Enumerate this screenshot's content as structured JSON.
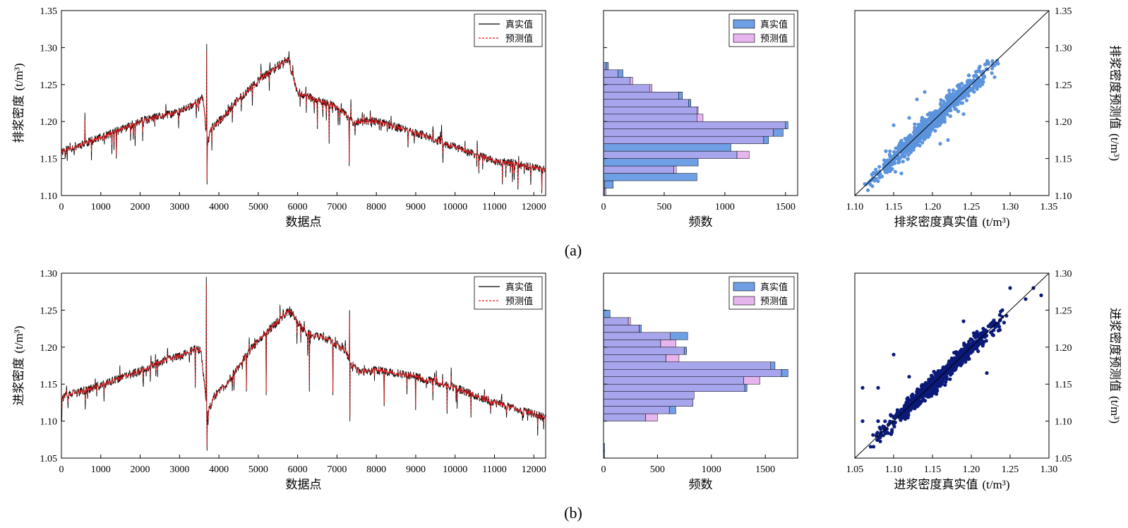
{
  "captions": {
    "a": "(a)",
    "b": "(b)"
  },
  "colors": {
    "true_line": "#000000",
    "pred_line": "#e41a1c",
    "hist_true": "#6fa0e6",
    "hist_pred": "#e6b5ee",
    "hist_overlap": "#a7a5ec",
    "scatter_a": "#5b93dc",
    "scatter_b": "#0b1a78"
  },
  "chart_data": [
    {
      "id": "a-series",
      "type": "line",
      "xlabel": "数据点",
      "ylabel": "排浆密度",
      "ylabel_unit": "(t/m³)",
      "xlim": [
        0,
        12300
      ],
      "ylim": [
        1.1,
        1.35
      ],
      "xticks": [
        "0",
        "1000",
        "2000",
        "3000",
        "4000",
        "5000",
        "6000",
        "7000",
        "8000",
        "9000",
        "10000",
        "11000",
        "12000"
      ],
      "yticks": [
        "1.10",
        "1.15",
        "1.20",
        "1.25",
        "1.30",
        "1.35"
      ],
      "legend": [
        "真实值",
        "预测值"
      ],
      "baseline_points": [
        [
          0,
          1.16
        ],
        [
          1000,
          1.178
        ],
        [
          2000,
          1.2
        ],
        [
          3000,
          1.213
        ],
        [
          3500,
          1.228
        ],
        [
          3600,
          1.232
        ],
        [
          3700,
          1.17
        ],
        [
          3800,
          1.19
        ],
        [
          4000,
          1.2
        ],
        [
          4500,
          1.23
        ],
        [
          5000,
          1.255
        ],
        [
          5500,
          1.275
        ],
        [
          5750,
          1.285
        ],
        [
          6000,
          1.24
        ],
        [
          6500,
          1.228
        ],
        [
          7000,
          1.22
        ],
        [
          7300,
          1.205
        ],
        [
          7400,
          1.2
        ],
        [
          8000,
          1.2
        ],
        [
          9000,
          1.185
        ],
        [
          10000,
          1.165
        ],
        [
          11000,
          1.147
        ],
        [
          12300,
          1.135
        ]
      ],
      "spikes": [
        [
          600,
          1.212
        ],
        [
          1400,
          1.15
        ],
        [
          3690,
          1.305
        ],
        [
          3700,
          1.115
        ],
        [
          4900,
          1.255
        ],
        [
          5300,
          1.28
        ],
        [
          5780,
          1.295
        ],
        [
          6500,
          1.19
        ],
        [
          6800,
          1.17
        ],
        [
          7310,
          1.14
        ],
        [
          7350,
          1.23
        ],
        [
          8800,
          1.165
        ],
        [
          9600,
          1.18
        ],
        [
          10600,
          1.13
        ],
        [
          11200,
          1.115
        ],
        [
          11600,
          1.108
        ],
        [
          12200,
          1.103
        ]
      ]
    },
    {
      "id": "a-hist",
      "type": "bar",
      "orientation": "horizontal",
      "xlabel": "频数",
      "xlim": [
        0,
        1600
      ],
      "ylim": [
        1.1,
        1.35
      ],
      "xticks": [
        "0",
        "500",
        "1000",
        "1500"
      ],
      "legend": [
        "真实值",
        "预测值"
      ],
      "bin_width": 0.01,
      "bin_starts": [
        1.1,
        1.11,
        1.12,
        1.13,
        1.14,
        1.15,
        1.16,
        1.17,
        1.18,
        1.19,
        1.2,
        1.21,
        1.22,
        1.23,
        1.24,
        1.25,
        1.26,
        1.27,
        1.28,
        1.29,
        1.3
      ],
      "true_values": [
        10,
        80,
        770,
        580,
        780,
        1100,
        1050,
        1360,
        1480,
        1520,
        770,
        770,
        720,
        650,
        380,
        220,
        160,
        40,
        0,
        0,
        0
      ],
      "pred_values": [
        20,
        10,
        0,
        600,
        0,
        1200,
        0,
        1320,
        1400,
        1500,
        820,
        780,
        700,
        620,
        400,
        240,
        120,
        20,
        0,
        0,
        0
      ]
    },
    {
      "id": "a-scatter",
      "type": "scatter",
      "xlabel": "排浆密度真实值",
      "xlabel_unit": "(t/m³)",
      "ylabel": "排浆密度预测值",
      "ylabel_unit": "(t/m³)",
      "xlim": [
        1.1,
        1.35
      ],
      "ylim": [
        1.1,
        1.35
      ],
      "xticks": [
        "1.10",
        "1.15",
        "1.20",
        "1.25",
        "1.30",
        "1.35"
      ],
      "yticks": [
        "1.10",
        "1.15",
        "1.20",
        "1.25",
        "1.30",
        "1.35"
      ],
      "x_range": [
        1.1,
        1.3
      ],
      "spread": 0.012,
      "outliers": [
        [
          1.17,
          1.205
        ],
        [
          1.15,
          1.195
        ],
        [
          1.18,
          1.23
        ],
        [
          1.19,
          1.24
        ],
        [
          1.22,
          1.175
        ],
        [
          1.21,
          1.17
        ],
        [
          1.24,
          1.21
        ],
        [
          1.16,
          1.13
        ],
        [
          1.14,
          1.16
        ],
        [
          1.28,
          1.26
        ],
        [
          1.12,
          1.115
        ]
      ]
    },
    {
      "id": "b-series",
      "type": "line",
      "xlabel": "数据点",
      "ylabel": "进浆密度",
      "ylabel_unit": "(t/m³)",
      "xlim": [
        0,
        12300
      ],
      "ylim": [
        1.05,
        1.3
      ],
      "xticks": [
        "0",
        "1000",
        "2000",
        "3000",
        "4000",
        "5000",
        "6000",
        "7000",
        "8000",
        "9000",
        "10000",
        "11000",
        "12000"
      ],
      "yticks": [
        "1.05",
        "1.10",
        "1.15",
        "1.20",
        "1.25",
        "1.30"
      ],
      "legend": [
        "真实值",
        "预测值"
      ],
      "baseline_points": [
        [
          0,
          1.132
        ],
        [
          1000,
          1.148
        ],
        [
          2000,
          1.168
        ],
        [
          2500,
          1.18
        ],
        [
          3000,
          1.188
        ],
        [
          3400,
          1.198
        ],
        [
          3550,
          1.195
        ],
        [
          3700,
          1.11
        ],
        [
          3900,
          1.135
        ],
        [
          4200,
          1.15
        ],
        [
          4500,
          1.175
        ],
        [
          5000,
          1.21
        ],
        [
          5500,
          1.235
        ],
        [
          5800,
          1.25
        ],
        [
          6200,
          1.22
        ],
        [
          6800,
          1.21
        ],
        [
          7200,
          1.195
        ],
        [
          7350,
          1.18
        ],
        [
          7600,
          1.165
        ],
        [
          8000,
          1.17
        ],
        [
          9000,
          1.16
        ],
        [
          10000,
          1.145
        ],
        [
          11000,
          1.125
        ],
        [
          12300,
          1.105
        ]
      ],
      "spikes": [
        [
          3400,
          1.145
        ],
        [
          3680,
          1.295
        ],
        [
          3700,
          1.06
        ],
        [
          4700,
          1.14
        ],
        [
          5200,
          1.135
        ],
        [
          5800,
          1.255
        ],
        [
          6300,
          1.14
        ],
        [
          6900,
          1.135
        ],
        [
          7320,
          1.25
        ],
        [
          7330,
          1.1
        ],
        [
          8200,
          1.12
        ],
        [
          9000,
          1.115
        ],
        [
          9800,
          1.11
        ],
        [
          10400,
          1.105
        ],
        [
          10900,
          1.11
        ],
        [
          11300,
          1.115
        ]
      ]
    },
    {
      "id": "b-hist",
      "type": "bar",
      "orientation": "horizontal",
      "xlabel": "频数",
      "xlim": [
        0,
        1800
      ],
      "ylim": [
        1.05,
        1.3
      ],
      "xticks": [
        "0",
        "500",
        "1000",
        "1500"
      ],
      "legend": [
        "真实值",
        "预测值"
      ],
      "bin_width": 0.01,
      "bin_starts": [
        1.05,
        1.06,
        1.07,
        1.08,
        1.09,
        1.1,
        1.11,
        1.12,
        1.13,
        1.14,
        1.15,
        1.16,
        1.17,
        1.18,
        1.19,
        1.2,
        1.21,
        1.22,
        1.23,
        1.24,
        1.25
      ],
      "true_values": [
        10,
        10,
        0,
        0,
        0,
        390,
        670,
        830,
        840,
        1330,
        1300,
        1710,
        1590,
        580,
        770,
        530,
        780,
        350,
        230,
        60,
        0
      ],
      "pred_values": [
        0,
        0,
        0,
        0,
        0,
        500,
        610,
        830,
        840,
        1310,
        1450,
        1650,
        1550,
        700,
        750,
        670,
        620,
        330,
        250,
        0,
        0
      ]
    },
    {
      "id": "b-scatter",
      "type": "scatter",
      "xlabel": "进浆密度真实值",
      "xlabel_unit": "(t/m³)",
      "ylabel": "进浆密度预测值",
      "ylabel_unit": "(t/m³)",
      "xlim": [
        1.05,
        1.3
      ],
      "ylim": [
        1.05,
        1.3
      ],
      "xticks": [
        "1.05",
        "1.10",
        "1.15",
        "1.20",
        "1.25",
        "1.30"
      ],
      "yticks": [
        "1.05",
        "1.10",
        "1.15",
        "1.20",
        "1.25",
        "1.30"
      ],
      "x_range": [
        1.06,
        1.26
      ],
      "spread": 0.01,
      "outliers": [
        [
          1.06,
          1.145
        ],
        [
          1.06,
          1.1
        ],
        [
          1.08,
          1.145
        ],
        [
          1.1,
          1.19
        ],
        [
          1.19,
          1.235
        ],
        [
          1.24,
          1.25
        ],
        [
          1.27,
          1.265
        ],
        [
          1.28,
          1.28
        ],
        [
          1.29,
          1.27
        ],
        [
          1.25,
          1.28
        ],
        [
          1.22,
          1.165
        ],
        [
          1.12,
          1.16
        ],
        [
          1.08,
          1.1
        ]
      ]
    }
  ]
}
